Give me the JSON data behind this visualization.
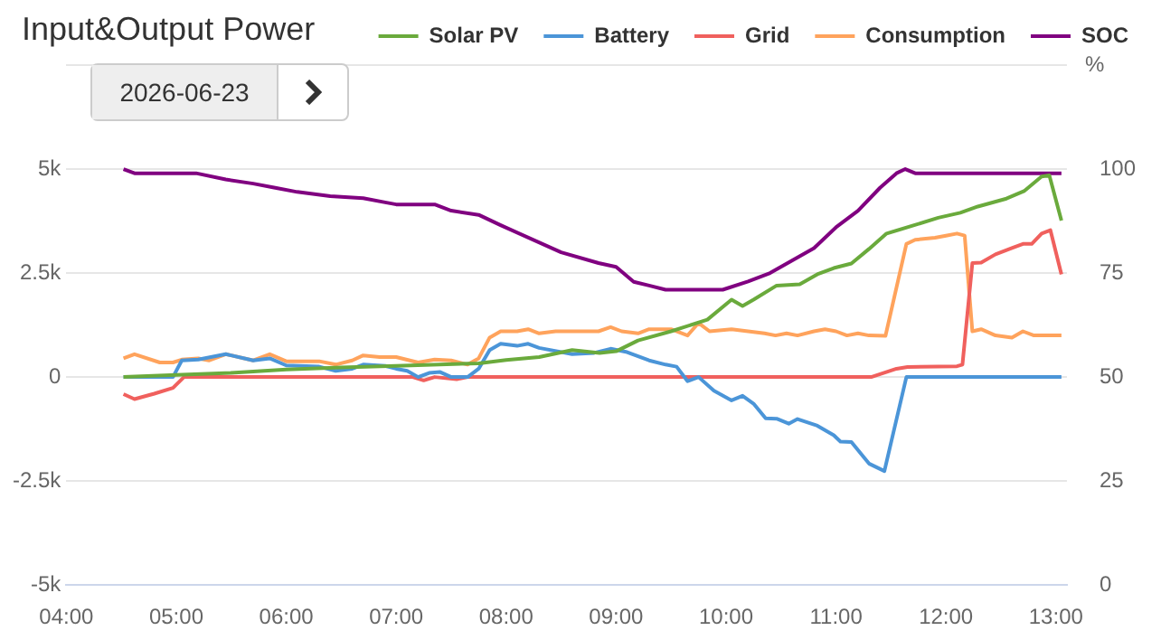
{
  "chart_data": {
    "type": "line",
    "title": "Input&Output Power",
    "y2label": "%",
    "annotations": [
      "2026-06-23"
    ],
    "xlim": [
      4,
      13.1
    ],
    "xticks": [
      {
        "value": 4,
        "label": "04:00"
      },
      {
        "value": 5,
        "label": "05:00"
      },
      {
        "value": 6,
        "label": "06:00"
      },
      {
        "value": 7,
        "label": "07:00"
      },
      {
        "value": 8,
        "label": "08:00"
      },
      {
        "value": 9,
        "label": "09:00"
      },
      {
        "value": 10,
        "label": "10:00"
      },
      {
        "value": 11,
        "label": "11:00"
      },
      {
        "value": 12,
        "label": "12:00"
      },
      {
        "value": 13,
        "label": "13:00"
      }
    ],
    "ylim": [
      -5000,
      7500
    ],
    "yticks": [
      {
        "value": -5000,
        "label": "-5k"
      },
      {
        "value": -2500,
        "label": "-2.5k"
      },
      0,
      {
        "value": 2500,
        "label": "2.5k"
      },
      {
        "value": 5000,
        "label": "5k"
      },
      {
        "value": 7500,
        "label": null
      }
    ],
    "y2lim": [
      0,
      125
    ],
    "y2ticks": [
      0,
      25,
      50,
      75,
      100
    ],
    "grid": "y",
    "legend": "top right",
    "series": [
      {
        "name": "Solar PV",
        "color": "#6aaa3c",
        "x": [
          4.52,
          5.0,
          5.5,
          6.0,
          6.5,
          7.0,
          7.75,
          8.0,
          8.3,
          8.6,
          8.85,
          9.0,
          9.2,
          9.5,
          9.83,
          10.05,
          10.15,
          10.25,
          10.46,
          10.67,
          10.83,
          10.98,
          11.14,
          11.3,
          11.46,
          11.71,
          11.93,
          12.13,
          12.29,
          12.55,
          12.71,
          12.87,
          12.94,
          13.05
        ],
        "values": [
          0,
          50,
          100,
          180,
          230,
          270,
          330,
          410,
          480,
          650,
          580,
          620,
          880,
          1100,
          1380,
          1860,
          1710,
          1860,
          2200,
          2230,
          2470,
          2620,
          2730,
          3080,
          3450,
          3650,
          3830,
          3950,
          4100,
          4290,
          4470,
          4820,
          4850,
          3760
        ]
      },
      {
        "name": "Battery",
        "color": "#4b95d8",
        "x": [
          4.52,
          4.97,
          5.05,
          5.2,
          5.45,
          5.7,
          5.85,
          6.0,
          6.3,
          6.45,
          6.6,
          6.7,
          6.9,
          7.0,
          7.1,
          7.2,
          7.3,
          7.4,
          7.5,
          7.65,
          7.75,
          7.85,
          7.95,
          8.1,
          8.2,
          8.3,
          8.6,
          8.8,
          8.95,
          9.1,
          9.3,
          9.45,
          9.55,
          9.65,
          9.75,
          9.89,
          10.05,
          10.15,
          10.25,
          10.36,
          10.46,
          10.57,
          10.65,
          10.83,
          10.98,
          11.04,
          11.14,
          11.3,
          11.44,
          11.64,
          13.05
        ],
        "values": [
          0,
          0,
          400,
          420,
          550,
          400,
          450,
          280,
          250,
          150,
          200,
          300,
          270,
          200,
          150,
          0,
          100,
          120,
          0,
          0,
          200,
          650,
          800,
          750,
          800,
          700,
          550,
          580,
          680,
          600,
          400,
          300,
          250,
          -100,
          0,
          -330,
          -560,
          -450,
          -640,
          -990,
          -1000,
          -1120,
          -1010,
          -1170,
          -1400,
          -1550,
          -1560,
          -2080,
          -2260,
          0,
          0
        ]
      },
      {
        "name": "Grid",
        "color": "#f0605d",
        "x": [
          4.52,
          4.62,
          4.8,
          4.97,
          5.07,
          7.15,
          7.25,
          7.35,
          7.55,
          7.65,
          11.32,
          11.55,
          11.65,
          12.1,
          12.15,
          12.24,
          12.32,
          12.45,
          12.6,
          12.7,
          12.78,
          12.87,
          12.95,
          13.05
        ],
        "values": [
          -410,
          -530,
          -400,
          -260,
          0,
          0,
          -80,
          0,
          -50,
          0,
          0,
          200,
          240,
          260,
          300,
          2740,
          2750,
          2950,
          3100,
          3200,
          3200,
          3450,
          3530,
          2470
        ]
      },
      {
        "name": "Consumption",
        "color": "#ffa35c",
        "x": [
          4.52,
          4.62,
          4.85,
          4.97,
          5.05,
          5.2,
          5.3,
          5.45,
          5.7,
          5.85,
          6.0,
          6.3,
          6.45,
          6.6,
          6.7,
          6.85,
          7.0,
          7.2,
          7.35,
          7.5,
          7.65,
          7.75,
          7.85,
          7.95,
          8.1,
          8.2,
          8.3,
          8.45,
          8.84,
          8.95,
          9.05,
          9.2,
          9.3,
          9.5,
          9.65,
          9.75,
          9.85,
          10.05,
          10.2,
          10.35,
          10.45,
          10.55,
          10.65,
          10.8,
          10.9,
          11.0,
          11.1,
          11.2,
          11.3,
          11.45,
          11.64,
          11.72,
          11.9,
          12.0,
          12.1,
          12.17,
          12.24,
          12.32,
          12.45,
          12.6,
          12.7,
          12.8,
          13.05
        ],
        "values": [
          450,
          550,
          350,
          350,
          420,
          450,
          400,
          550,
          400,
          550,
          380,
          380,
          300,
          400,
          520,
          480,
          480,
          350,
          420,
          400,
          300,
          450,
          950,
          1100,
          1100,
          1150,
          1050,
          1100,
          1100,
          1200,
          1100,
          1050,
          1150,
          1150,
          1000,
          1300,
          1100,
          1150,
          1100,
          1050,
          1000,
          1050,
          1000,
          1100,
          1150,
          1100,
          1000,
          1050,
          1000,
          990,
          3200,
          3300,
          3350,
          3400,
          3450,
          3400,
          1100,
          1150,
          1000,
          950,
          1100,
          1000,
          1000
        ]
      },
      {
        "name": "SOC",
        "color": "#800080",
        "axis": "y2",
        "x": [
          4.52,
          4.62,
          5.18,
          5.45,
          5.7,
          5.9,
          6.1,
          6.4,
          6.7,
          6.9,
          7.0,
          7.35,
          7.5,
          7.75,
          7.95,
          8.5,
          8.84,
          9.0,
          9.16,
          9.3,
          9.45,
          9.97,
          10.2,
          10.4,
          10.6,
          10.8,
          11.0,
          11.2,
          11.4,
          11.55,
          11.63,
          11.72,
          13.05
        ],
        "values": [
          100,
          99,
          99,
          97.5,
          96.5,
          95.5,
          94.5,
          93.5,
          93,
          92,
          91.5,
          91.5,
          90,
          89,
          86.5,
          80,
          77.4,
          76.5,
          72.9,
          72,
          71,
          71,
          73,
          75,
          78,
          81,
          86,
          90,
          95.5,
          99,
          100,
          99,
          99
        ]
      }
    ]
  }
}
